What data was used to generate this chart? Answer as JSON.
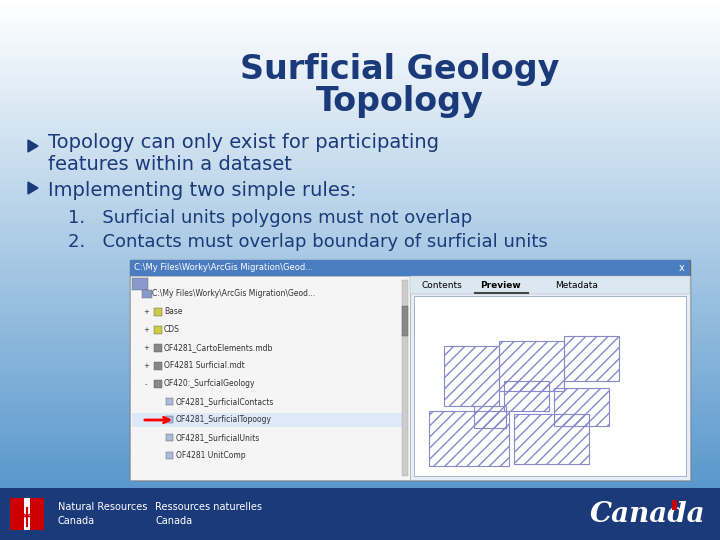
{
  "title_line1": "Surficial Geology",
  "title_line2": "Topology",
  "title_color": "#1a3a7a",
  "title_fontsize": 24,
  "bullet1_line1": "Topology can only exist for participating",
  "bullet1_line2": "features within a dataset",
  "bullet2": "Implementing two simple rules:",
  "sub1": "1.   Surficial units polygons must not overlap",
  "sub2": "2.   Contacts must overlap boundary of surficial units",
  "bullet_color": "#1a3a7a",
  "text_color": "#1a3a7a",
  "text_fontsize": 14,
  "sub_fontsize": 13,
  "footer_color": "#1a3a7a",
  "footer_text1": "Natural Resources\nCanada",
  "footer_text2": "Ressources naturelles\nCanada",
  "footer_fontsize": 7,
  "canada_fontsize": 20,
  "footer_text_color": "#ffffff",
  "tree_items": [
    [
      0,
      "C:\\My Files\\Worky\\ArcGis Migration\\Geod..."
    ],
    [
      1,
      "Base"
    ],
    [
      1,
      "CDS"
    ],
    [
      1,
      "OF4281_CartoElements.mdb"
    ],
    [
      1,
      "OF4281 Surficial.mdt"
    ],
    [
      1,
      "OF420:_SurfcialGeology"
    ],
    [
      2,
      "OF4281_SurficialContacts"
    ],
    [
      2,
      "OF4281_SurficialTopoogy"
    ],
    [
      2,
      "OF4281_SurficialUnits"
    ],
    [
      2,
      "OF4281 UnitComp"
    ]
  ],
  "highlighted_item": 7,
  "hatch_color": "#8888cc",
  "tab_labels": [
    "Contents",
    "Preview",
    "Metadata"
  ],
  "active_tab": 1
}
